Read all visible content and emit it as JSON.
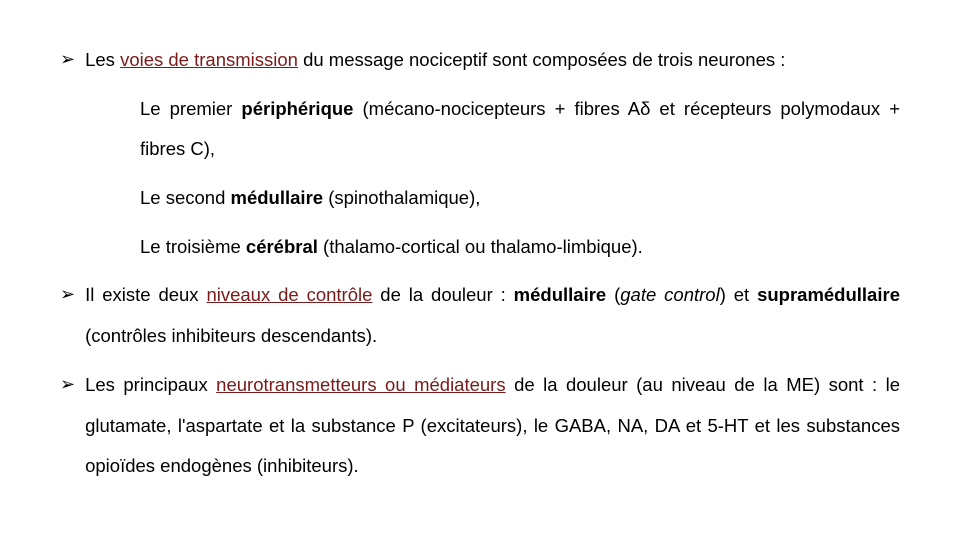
{
  "colors": {
    "text": "#000000",
    "accent": "#7a1a1a",
    "background": "#ffffff"
  },
  "typography": {
    "font_family": "Arial",
    "body_fontsize": 18.5,
    "line_height": 2.2
  },
  "bullets": [
    {
      "marker": "➢",
      "prefix": "Les ",
      "key_phrase": "voies de transmission",
      "suffix": " du message nociceptif sont composées de trois neurones :",
      "subs": [
        {
          "lead": "Le premier ",
          "term": "périphérique",
          "rest": " (mécano-nocicepteurs + fibres Aδ et récepteurs polymodaux + fibres C),"
        },
        {
          "lead": "Le second ",
          "term": "médullaire",
          "rest": " (spinothalamique),"
        },
        {
          "lead": "Le troisième ",
          "term": "cérébral",
          "rest": " (thalamo-cortical ou thalamo-limbique)."
        }
      ]
    },
    {
      "marker": "➢",
      "pre": "Il existe deux ",
      "accent1": "niveaux de contrôle",
      "mid1": " de la douleur : ",
      "bold1": "médullaire",
      "mid2": " (",
      "ital": "gate control",
      "mid3": ") et ",
      "bold2": "supramédullaire",
      "tail": " (contrôles inhibiteurs descendants)."
    },
    {
      "marker": "➢",
      "pre": "Les principaux ",
      "accent1": "neurotransmetteurs ou médiateurs",
      "tail": " de la douleur (au niveau de la ME) sont : le glutamate, l'aspartate et la substance P (excitateurs), le GABA, NA, DA et 5-HT et les substances opioïdes endogènes (inhibiteurs)."
    }
  ]
}
